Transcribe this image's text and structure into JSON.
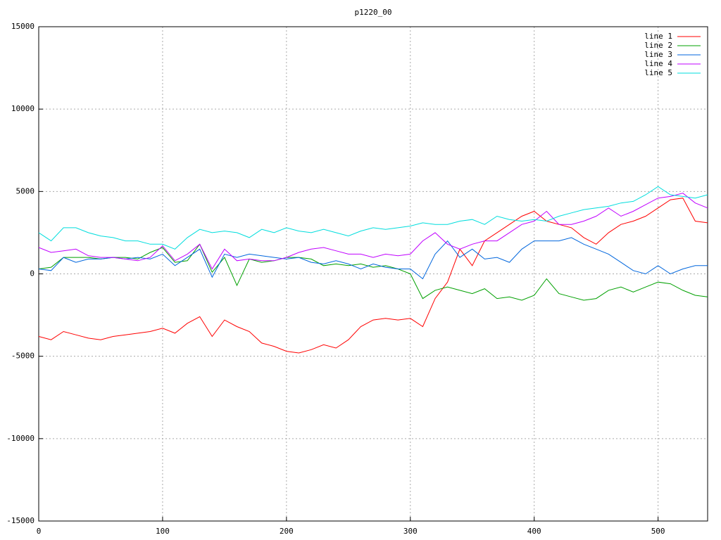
{
  "chart_data": {
    "type": "line",
    "title": "p1220_00",
    "x": [
      0,
      10,
      20,
      30,
      40,
      50,
      60,
      70,
      80,
      90,
      100,
      110,
      120,
      130,
      140,
      150,
      160,
      170,
      180,
      190,
      200,
      210,
      220,
      230,
      240,
      250,
      260,
      270,
      280,
      290,
      300,
      310,
      320,
      330,
      340,
      350,
      360,
      370,
      380,
      390,
      400,
      410,
      420,
      430,
      440,
      450,
      460,
      470,
      480,
      490,
      500,
      510,
      520,
      530,
      540
    ],
    "series": [
      {
        "name": "line 1",
        "color": "#ff0000",
        "values": [
          -3800,
          -4000,
          -3500,
          -3700,
          -3900,
          -4000,
          -3800,
          -3700,
          -3600,
          -3500,
          -3300,
          -3600,
          -3000,
          -2600,
          -3800,
          -2800,
          -3200,
          -3500,
          -4200,
          -4400,
          -4700,
          -4800,
          -4600,
          -4300,
          -4500,
          -4000,
          -3200,
          -2800,
          -2700,
          -2800,
          -2700,
          -3200,
          -1500,
          -500,
          1500,
          500,
          2000,
          2500,
          3000,
          3500,
          3800,
          3200,
          3000,
          2800,
          2200,
          1800,
          2500,
          3000,
          3200,
          3500,
          4000,
          4500,
          4600,
          3200,
          3100
        ]
      },
      {
        "name": "line 2",
        "color": "#00a000",
        "values": [
          300,
          400,
          1000,
          1000,
          1000,
          900,
          1000,
          1000,
          900,
          1300,
          1600,
          700,
          800,
          1800,
          100,
          1000,
          -700,
          900,
          700,
          800,
          1000,
          1000,
          900,
          500,
          600,
          500,
          600,
          400,
          500,
          300,
          0,
          -1500,
          -1000,
          -800,
          -1000,
          -1200,
          -900,
          -1500,
          -1400,
          -1600,
          -1300,
          -300,
          -1200,
          -1400,
          -1600,
          -1500,
          -1000,
          -800,
          -1100,
          -800,
          -500,
          -600,
          -1000,
          -1300,
          -1400
        ]
      },
      {
        "name": "line 3",
        "color": "#0066dd",
        "values": [
          300,
          200,
          1000,
          700,
          900,
          900,
          1000,
          900,
          1000,
          900,
          1200,
          500,
          1000,
          1500,
          -200,
          1200,
          1000,
          1200,
          1100,
          1000,
          900,
          1000,
          700,
          600,
          800,
          600,
          300,
          600,
          400,
          300,
          300,
          -300,
          1200,
          2000,
          1000,
          1500,
          900,
          1000,
          700,
          1500,
          2000,
          2000,
          2000,
          2200,
          1800,
          1500,
          1200,
          700,
          200,
          0,
          500,
          0,
          300,
          500,
          500
        ]
      },
      {
        "name": "line 4",
        "color": "#c000ff",
        "values": [
          1600,
          1300,
          1400,
          1500,
          1100,
          1000,
          1000,
          900,
          800,
          1000,
          1700,
          800,
          1200,
          1800,
          300,
          1500,
          800,
          900,
          800,
          800,
          1000,
          1300,
          1500,
          1600,
          1400,
          1200,
          1200,
          1000,
          1200,
          1100,
          1200,
          2000,
          2500,
          1800,
          1500,
          1800,
          2000,
          2000,
          2500,
          3000,
          3200,
          3800,
          3000,
          3000,
          3200,
          3500,
          4000,
          3500,
          3800,
          4200,
          4600,
          4700,
          4900,
          4300,
          4000
        ]
      },
      {
        "name": "line 5",
        "color": "#00dddd",
        "values": [
          2500,
          2000,
          2800,
          2800,
          2500,
          2300,
          2200,
          2000,
          2000,
          1800,
          1800,
          1500,
          2200,
          2700,
          2500,
          2600,
          2500,
          2200,
          2700,
          2500,
          2800,
          2600,
          2500,
          2700,
          2500,
          2300,
          2600,
          2800,
          2700,
          2800,
          2900,
          3100,
          3000,
          3000,
          3200,
          3300,
          3000,
          3500,
          3300,
          3200,
          3300,
          3200,
          3500,
          3700,
          3900,
          4000,
          4100,
          4300,
          4400,
          4800,
          5300,
          4800,
          4700,
          4600,
          4800
        ]
      }
    ],
    "xlim": [
      0,
      540
    ],
    "xticks": [
      0,
      100,
      200,
      300,
      400,
      500
    ],
    "ylim": [
      -15000,
      15000
    ],
    "yticks": [
      -15000,
      -10000,
      -5000,
      0,
      5000,
      10000,
      15000
    ],
    "grid": true,
    "legend": "top-right"
  }
}
